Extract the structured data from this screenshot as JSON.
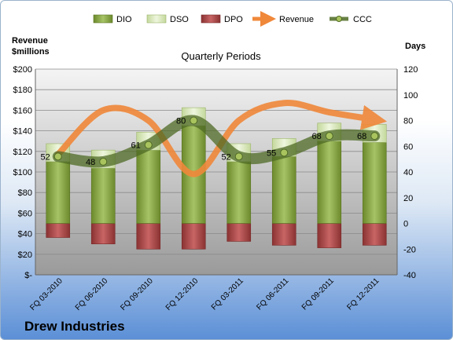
{
  "company": "Drew Industries",
  "chart_data": {
    "type": "bar",
    "title": "Quarterly Periods",
    "y_left_label_line1": "Revenue",
    "y_left_label_line2": "$millions",
    "y_right_label": "Days",
    "categories": [
      "FQ 03-2010",
      "FQ 06-2010",
      "FQ 09-2010",
      "FQ 12-2010",
      "FQ 03-2011",
      "FQ 06-2011",
      "FQ 09-2011",
      "FQ 12-2011"
    ],
    "y_left_ticks": [
      "$200",
      "$180",
      "$160",
      "$140",
      "$120",
      "$100",
      "$80",
      "$60",
      "$40",
      "$20",
      "$-"
    ],
    "y_left_range": [
      0,
      200
    ],
    "y_right_range": [
      -40,
      120
    ],
    "y_right_ticks": [
      "120",
      "100",
      "80",
      "60",
      "40",
      "20",
      "0",
      "-20",
      "-40"
    ],
    "legend_position": "top",
    "series": [
      {
        "name": "DIO",
        "axis": "right",
        "values": [
          48,
          43,
          57,
          76,
          48,
          52,
          64,
          63
        ],
        "color": "#7a9a3a"
      },
      {
        "name": "DSO",
        "axis": "right",
        "values": [
          14,
          14,
          14,
          14,
          14,
          14,
          14,
          14
        ],
        "color": "#d7e8b4"
      },
      {
        "name": "DPO",
        "axis": "right",
        "values": [
          -11,
          -16,
          -20,
          -20,
          -14,
          -17,
          -19,
          -17
        ],
        "color": "#a84848"
      },
      {
        "name": "Revenue",
        "axis": "left",
        "values": [
          117,
          160,
          150,
          98,
          150,
          167,
          158,
          151
        ],
        "color": "#f0883a"
      },
      {
        "name": "CCC",
        "axis": "right",
        "values": [
          52,
          48,
          61,
          80,
          52,
          55,
          68,
          68
        ],
        "color": "#5a7a2a"
      }
    ],
    "ccc_labels": [
      "52",
      "48",
      "61",
      "80",
      "52",
      "55",
      "68",
      "68"
    ]
  }
}
